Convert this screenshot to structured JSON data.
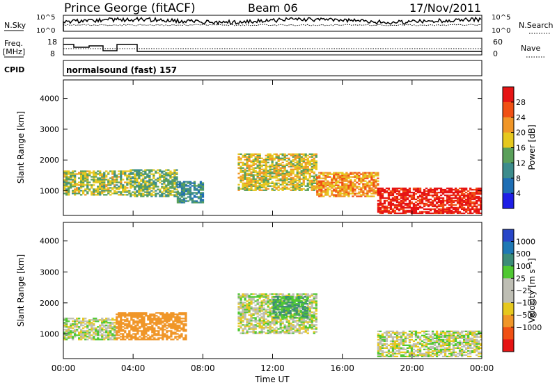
{
  "header": {
    "station": "Prince George (fitACF)",
    "beam": "Beam 06",
    "date": "17/Nov/2011"
  },
  "noise_panel": {
    "left_label": "N.Sky",
    "right_label": "N.Search",
    "left_ticks": [
      "10^5",
      "10^0"
    ],
    "right_ticks": [
      "10^5",
      "10^0"
    ]
  },
  "freq_panel": {
    "left_label_line1": "Freq.",
    "left_label_line2": "[MHz]",
    "right_label": "Nave",
    "left_ticks": [
      "18",
      "8"
    ],
    "right_ticks": [
      "60",
      "0"
    ]
  },
  "cpid": {
    "label": "CPID",
    "value": "normalsound (fast) 157"
  },
  "time_axis": {
    "label": "Time UT",
    "ticks": [
      "00:00",
      "04:00",
      "08:00",
      "12:00",
      "16:00",
      "20:00",
      "00:00"
    ]
  },
  "colors": {
    "power": [
      "#1e1ee6",
      "#1e6eb4",
      "#3c8c8c",
      "#5aa05a",
      "#e6c81e",
      "#f09628",
      "#f05014",
      "#e61414"
    ],
    "velocity": [
      "#e61414",
      "#f05014",
      "#f09628",
      "#e6c81e",
      "#bebeb4",
      "#bebeb4",
      "#50c832",
      "#3c8c78",
      "#1e78b4",
      "#2846c8"
    ]
  },
  "chart_data": [
    {
      "type": "heatmap",
      "name": "power",
      "xlabel": "Time UT",
      "ylabel": "Slant Range [km]",
      "x_ticks": [
        "00:00",
        "04:00",
        "08:00",
        "12:00",
        "16:00",
        "20:00",
        "00:00"
      ],
      "xlim": [
        0,
        24
      ],
      "ylim": [
        200,
        4600
      ],
      "y_ticks": [
        1000,
        2000,
        3000,
        4000
      ],
      "colorbar": {
        "label": "Power [dB]",
        "ticks": [
          "4",
          "8",
          "12",
          "16",
          "20",
          "24",
          "28"
        ],
        "range": [
          0,
          32
        ]
      },
      "echo_regions": [
        {
          "t0": 0.0,
          "t1": 3.8,
          "r0": 850,
          "r1": 1650,
          "power": 16
        },
        {
          "t0": 3.8,
          "t1": 6.5,
          "r0": 800,
          "r1": 1700,
          "power": 14
        },
        {
          "t0": 6.5,
          "t1": 8.0,
          "r0": 600,
          "r1": 1300,
          "power": 10
        },
        {
          "t0": 10.0,
          "t1": 14.5,
          "r0": 1000,
          "r1": 2200,
          "power": 18
        },
        {
          "t0": 14.5,
          "t1": 18.0,
          "r0": 800,
          "r1": 1600,
          "power": 22
        },
        {
          "t0": 18.0,
          "t1": 24.0,
          "r0": 250,
          "r1": 1100,
          "power": 30
        }
      ]
    },
    {
      "type": "heatmap",
      "name": "velocity",
      "xlabel": "Time UT",
      "ylabel": "Slant Range [km]",
      "x_ticks": [
        "00:00",
        "04:00",
        "08:00",
        "12:00",
        "16:00",
        "20:00",
        "00:00"
      ],
      "xlim": [
        0,
        24
      ],
      "ylim": [
        200,
        4600
      ],
      "y_ticks": [
        1000,
        2000,
        3000,
        4000
      ],
      "colorbar": {
        "label": "Velocity [m s⁻¹]",
        "ticks": [
          "1000",
          "500",
          "100",
          "25",
          "−25",
          "−100",
          "−500",
          "−1000"
        ]
      },
      "echo_regions": [
        {
          "t0": 0.0,
          "t1": 3.0,
          "r0": 800,
          "r1": 1500,
          "velocity": 0
        },
        {
          "t0": 3.0,
          "t1": 7.0,
          "r0": 800,
          "r1": 1700,
          "velocity": -300
        },
        {
          "t0": 10.0,
          "t1": 14.5,
          "r0": 1000,
          "r1": 2300,
          "velocity": 0
        },
        {
          "t0": 12.0,
          "t1": 14.0,
          "r0": 1500,
          "r1": 2200,
          "velocity": 100
        },
        {
          "t0": 18.0,
          "t1": 24.0,
          "r0": 250,
          "r1": 1100,
          "velocity": 0
        }
      ]
    }
  ]
}
